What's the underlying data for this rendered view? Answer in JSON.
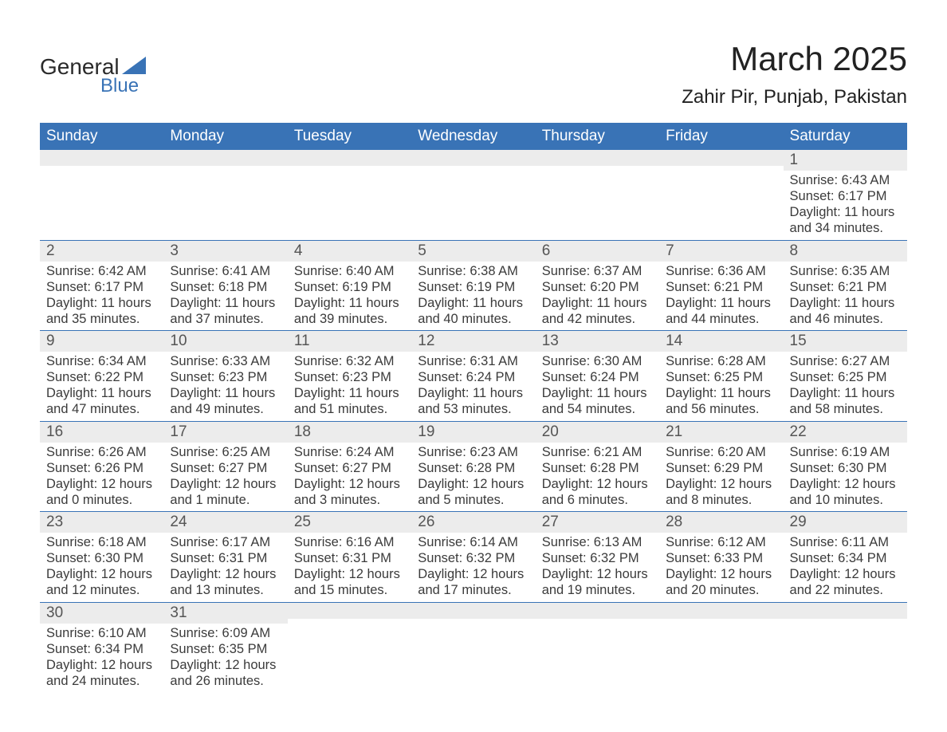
{
  "logo": {
    "word1": "General",
    "word2": "Blue",
    "triangle_color": "#3973b6"
  },
  "title": "March 2025",
  "subtitle": "Zahir Pir, Punjab, Pakistan",
  "colors": {
    "header_bg": "#3973b6",
    "header_text": "#ffffff",
    "daynum_bg": "#ececec",
    "row_border": "#3973b6",
    "body_text": "#3b3b3b",
    "title_text": "#222222"
  },
  "typography": {
    "title_fontsize": 42,
    "subtitle_fontsize": 24,
    "header_fontsize": 19,
    "daynum_fontsize": 19,
    "cell_fontsize": 16.5
  },
  "day_headers": [
    "Sunday",
    "Monday",
    "Tuesday",
    "Wednesday",
    "Thursday",
    "Friday",
    "Saturday"
  ],
  "weeks": [
    [
      null,
      null,
      null,
      null,
      null,
      null,
      {
        "n": "1",
        "sunrise": "Sunrise: 6:43 AM",
        "sunset": "Sunset: 6:17 PM",
        "daylight1": "Daylight: 11 hours",
        "daylight2": "and 34 minutes."
      }
    ],
    [
      {
        "n": "2",
        "sunrise": "Sunrise: 6:42 AM",
        "sunset": "Sunset: 6:17 PM",
        "daylight1": "Daylight: 11 hours",
        "daylight2": "and 35 minutes."
      },
      {
        "n": "3",
        "sunrise": "Sunrise: 6:41 AM",
        "sunset": "Sunset: 6:18 PM",
        "daylight1": "Daylight: 11 hours",
        "daylight2": "and 37 minutes."
      },
      {
        "n": "4",
        "sunrise": "Sunrise: 6:40 AM",
        "sunset": "Sunset: 6:19 PM",
        "daylight1": "Daylight: 11 hours",
        "daylight2": "and 39 minutes."
      },
      {
        "n": "5",
        "sunrise": "Sunrise: 6:38 AM",
        "sunset": "Sunset: 6:19 PM",
        "daylight1": "Daylight: 11 hours",
        "daylight2": "and 40 minutes."
      },
      {
        "n": "6",
        "sunrise": "Sunrise: 6:37 AM",
        "sunset": "Sunset: 6:20 PM",
        "daylight1": "Daylight: 11 hours",
        "daylight2": "and 42 minutes."
      },
      {
        "n": "7",
        "sunrise": "Sunrise: 6:36 AM",
        "sunset": "Sunset: 6:21 PM",
        "daylight1": "Daylight: 11 hours",
        "daylight2": "and 44 minutes."
      },
      {
        "n": "8",
        "sunrise": "Sunrise: 6:35 AM",
        "sunset": "Sunset: 6:21 PM",
        "daylight1": "Daylight: 11 hours",
        "daylight2": "and 46 minutes."
      }
    ],
    [
      {
        "n": "9",
        "sunrise": "Sunrise: 6:34 AM",
        "sunset": "Sunset: 6:22 PM",
        "daylight1": "Daylight: 11 hours",
        "daylight2": "and 47 minutes."
      },
      {
        "n": "10",
        "sunrise": "Sunrise: 6:33 AM",
        "sunset": "Sunset: 6:23 PM",
        "daylight1": "Daylight: 11 hours",
        "daylight2": "and 49 minutes."
      },
      {
        "n": "11",
        "sunrise": "Sunrise: 6:32 AM",
        "sunset": "Sunset: 6:23 PM",
        "daylight1": "Daylight: 11 hours",
        "daylight2": "and 51 minutes."
      },
      {
        "n": "12",
        "sunrise": "Sunrise: 6:31 AM",
        "sunset": "Sunset: 6:24 PM",
        "daylight1": "Daylight: 11 hours",
        "daylight2": "and 53 minutes."
      },
      {
        "n": "13",
        "sunrise": "Sunrise: 6:30 AM",
        "sunset": "Sunset: 6:24 PM",
        "daylight1": "Daylight: 11 hours",
        "daylight2": "and 54 minutes."
      },
      {
        "n": "14",
        "sunrise": "Sunrise: 6:28 AM",
        "sunset": "Sunset: 6:25 PM",
        "daylight1": "Daylight: 11 hours",
        "daylight2": "and 56 minutes."
      },
      {
        "n": "15",
        "sunrise": "Sunrise: 6:27 AM",
        "sunset": "Sunset: 6:25 PM",
        "daylight1": "Daylight: 11 hours",
        "daylight2": "and 58 minutes."
      }
    ],
    [
      {
        "n": "16",
        "sunrise": "Sunrise: 6:26 AM",
        "sunset": "Sunset: 6:26 PM",
        "daylight1": "Daylight: 12 hours",
        "daylight2": "and 0 minutes."
      },
      {
        "n": "17",
        "sunrise": "Sunrise: 6:25 AM",
        "sunset": "Sunset: 6:27 PM",
        "daylight1": "Daylight: 12 hours",
        "daylight2": "and 1 minute."
      },
      {
        "n": "18",
        "sunrise": "Sunrise: 6:24 AM",
        "sunset": "Sunset: 6:27 PM",
        "daylight1": "Daylight: 12 hours",
        "daylight2": "and 3 minutes."
      },
      {
        "n": "19",
        "sunrise": "Sunrise: 6:23 AM",
        "sunset": "Sunset: 6:28 PM",
        "daylight1": "Daylight: 12 hours",
        "daylight2": "and 5 minutes."
      },
      {
        "n": "20",
        "sunrise": "Sunrise: 6:21 AM",
        "sunset": "Sunset: 6:28 PM",
        "daylight1": "Daylight: 12 hours",
        "daylight2": "and 6 minutes."
      },
      {
        "n": "21",
        "sunrise": "Sunrise: 6:20 AM",
        "sunset": "Sunset: 6:29 PM",
        "daylight1": "Daylight: 12 hours",
        "daylight2": "and 8 minutes."
      },
      {
        "n": "22",
        "sunrise": "Sunrise: 6:19 AM",
        "sunset": "Sunset: 6:30 PM",
        "daylight1": "Daylight: 12 hours",
        "daylight2": "and 10 minutes."
      }
    ],
    [
      {
        "n": "23",
        "sunrise": "Sunrise: 6:18 AM",
        "sunset": "Sunset: 6:30 PM",
        "daylight1": "Daylight: 12 hours",
        "daylight2": "and 12 minutes."
      },
      {
        "n": "24",
        "sunrise": "Sunrise: 6:17 AM",
        "sunset": "Sunset: 6:31 PM",
        "daylight1": "Daylight: 12 hours",
        "daylight2": "and 13 minutes."
      },
      {
        "n": "25",
        "sunrise": "Sunrise: 6:16 AM",
        "sunset": "Sunset: 6:31 PM",
        "daylight1": "Daylight: 12 hours",
        "daylight2": "and 15 minutes."
      },
      {
        "n": "26",
        "sunrise": "Sunrise: 6:14 AM",
        "sunset": "Sunset: 6:32 PM",
        "daylight1": "Daylight: 12 hours",
        "daylight2": "and 17 minutes."
      },
      {
        "n": "27",
        "sunrise": "Sunrise: 6:13 AM",
        "sunset": "Sunset: 6:32 PM",
        "daylight1": "Daylight: 12 hours",
        "daylight2": "and 19 minutes."
      },
      {
        "n": "28",
        "sunrise": "Sunrise: 6:12 AM",
        "sunset": "Sunset: 6:33 PM",
        "daylight1": "Daylight: 12 hours",
        "daylight2": "and 20 minutes."
      },
      {
        "n": "29",
        "sunrise": "Sunrise: 6:11 AM",
        "sunset": "Sunset: 6:34 PM",
        "daylight1": "Daylight: 12 hours",
        "daylight2": "and 22 minutes."
      }
    ],
    [
      {
        "n": "30",
        "sunrise": "Sunrise: 6:10 AM",
        "sunset": "Sunset: 6:34 PM",
        "daylight1": "Daylight: 12 hours",
        "daylight2": "and 24 minutes."
      },
      {
        "n": "31",
        "sunrise": "Sunrise: 6:09 AM",
        "sunset": "Sunset: 6:35 PM",
        "daylight1": "Daylight: 12 hours",
        "daylight2": "and 26 minutes."
      },
      null,
      null,
      null,
      null,
      null
    ]
  ]
}
